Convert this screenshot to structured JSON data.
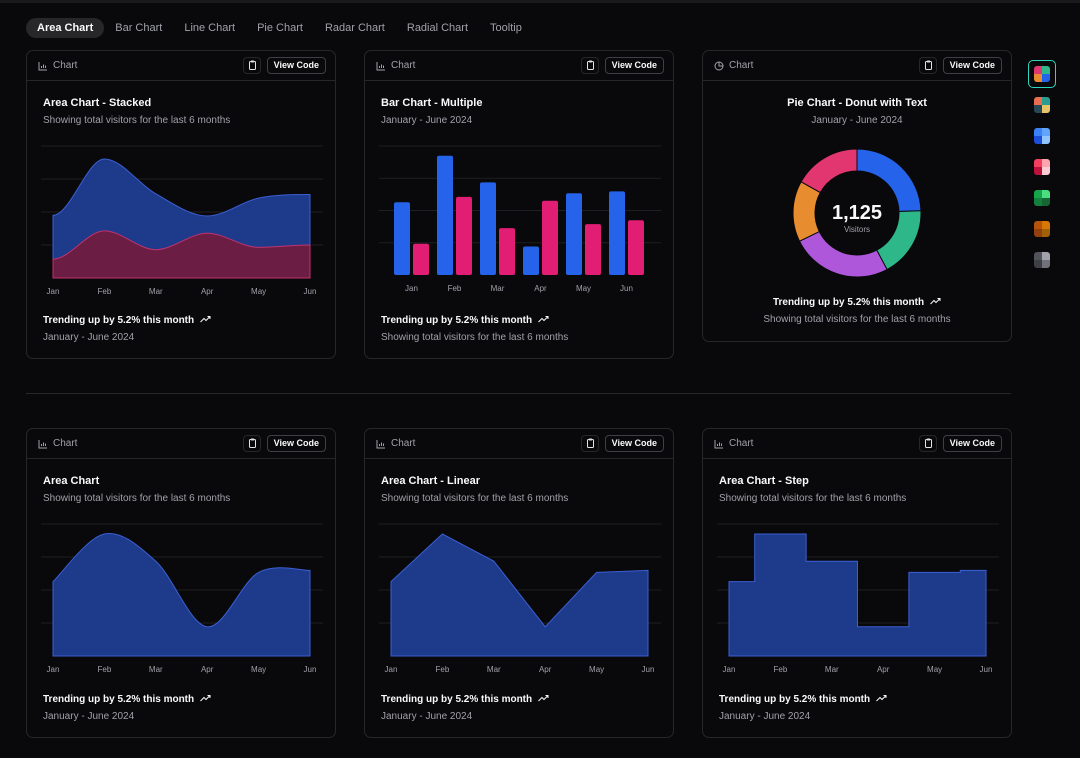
{
  "tabs": [
    "Area Chart",
    "Bar Chart",
    "Line Chart",
    "Pie Chart",
    "Radar Chart",
    "Radial Chart",
    "Tooltip"
  ],
  "active_tab": "Area Chart",
  "card_header": {
    "label": "Chart",
    "view_code_label": "View Code"
  },
  "colors": {
    "blue": "#2563eb",
    "pink": "#e11d74",
    "area_fill": "#1e3a8a",
    "area_stroke": "#3b5fd4",
    "desktop_fill": "#1e3a8a",
    "mobile_fill": "#6b1d44",
    "donut": [
      "#2563eb",
      "#2eb88a",
      "#af57db",
      "#e88c30",
      "#e23670"
    ],
    "swatch_ring": "#2dd4bf"
  },
  "cards": {
    "stacked": {
      "title": "Area Chart - Stacked",
      "subtitle": "Showing total visitors for the last 6 months",
      "trend": "Trending up by 5.2% this month",
      "footer": "January - June 2024"
    },
    "bar_multiple": {
      "title": "Bar Chart - Multiple",
      "subtitle": "January - June 2024",
      "trend": "Trending up by 5.2% this month",
      "footer": "Showing total visitors for the last 6 months"
    },
    "donut": {
      "title": "Pie Chart - Donut with Text",
      "subtitle": "January - June 2024",
      "total": "1,125",
      "total_label": "Visitors",
      "trend": "Trending up by 5.2% this month",
      "footer": "Showing total visitors for the last 6 months"
    },
    "area": {
      "title": "Area Chart",
      "subtitle": "Showing total visitors for the last 6 months",
      "trend": "Trending up by 5.2% this month",
      "footer": "January - June 2024"
    },
    "linear": {
      "title": "Area Chart - Linear",
      "subtitle": "Showing total visitors for the last 6 months",
      "trend": "Trending up by 5.2% this month",
      "footer": "January - June 2024"
    },
    "step": {
      "title": "Area Chart - Step",
      "subtitle": "Showing total visitors for the last 6 months",
      "trend": "Trending up by 5.2% this month",
      "footer": "January - June 2024"
    }
  },
  "chart_data": [
    {
      "id": "stacked",
      "type": "area",
      "style": "monotone-stacked",
      "categories": [
        "Jan",
        "Feb",
        "Mar",
        "Apr",
        "May",
        "Jun"
      ],
      "series": [
        {
          "key": "mobile",
          "values": [
            80,
            200,
            120,
            190,
            130,
            140
          ]
        },
        {
          "key": "desktop",
          "values": [
            186,
            305,
            237,
            73,
            209,
            214
          ]
        }
      ],
      "ylim": [
        0,
        560
      ],
      "grid": "horizontal"
    },
    {
      "id": "bar_multiple",
      "type": "bar",
      "categories": [
        "Jan",
        "Feb",
        "Mar",
        "Apr",
        "May",
        "Jun"
      ],
      "series": [
        {
          "key": "desktop",
          "values": [
            186,
            305,
            237,
            73,
            209,
            214
          ]
        },
        {
          "key": "mobile",
          "values": [
            80,
            200,
            120,
            190,
            130,
            140
          ]
        }
      ],
      "ylim": [
        0,
        330
      ],
      "grid": "horizontal"
    },
    {
      "id": "donut",
      "type": "pie",
      "labels": [
        "chrome",
        "safari",
        "firefox",
        "edge",
        "other"
      ],
      "values": [
        275,
        200,
        287,
        173,
        190
      ],
      "total": 1125
    },
    {
      "id": "area",
      "type": "area",
      "style": "natural",
      "categories": [
        "Jan",
        "Feb",
        "Mar",
        "Apr",
        "May",
        "Jun"
      ],
      "values": [
        186,
        305,
        237,
        73,
        209,
        214
      ],
      "ylim": [
        0,
        330
      ],
      "grid": "horizontal"
    },
    {
      "id": "linear",
      "type": "area",
      "style": "linear",
      "categories": [
        "Jan",
        "Feb",
        "Mar",
        "Apr",
        "May",
        "Jun"
      ],
      "values": [
        186,
        305,
        237,
        73,
        209,
        214
      ],
      "ylim": [
        0,
        330
      ],
      "grid": "horizontal"
    },
    {
      "id": "step",
      "type": "area",
      "style": "step",
      "categories": [
        "Jan",
        "Feb",
        "Mar",
        "Apr",
        "May",
        "Jun"
      ],
      "values": [
        186,
        305,
        237,
        73,
        209,
        214
      ],
      "ylim": [
        0,
        330
      ],
      "grid": "horizontal"
    }
  ],
  "theme_swatches": [
    {
      "name": "default",
      "colors": [
        "#e23670",
        "#2eb88a",
        "#e88c30",
        "#2563eb"
      ],
      "active": true
    },
    {
      "name": "palette",
      "colors": [
        "#e76e50",
        "#2a9d90",
        "#274754",
        "#e8c468"
      ],
      "active": false
    },
    {
      "name": "blue",
      "colors": [
        "#3b82f6",
        "#60a5fa",
        "#1d4ed8",
        "#93c5fd"
      ],
      "active": false
    },
    {
      "name": "rose",
      "colors": [
        "#f43f5e",
        "#fda4af",
        "#be123c",
        "#fecdd3"
      ],
      "active": false
    },
    {
      "name": "green",
      "colors": [
        "#16a34a",
        "#4ade80",
        "#15803d",
        "#166534"
      ],
      "active": false
    },
    {
      "name": "orange",
      "colors": [
        "#b45309",
        "#d97706",
        "#92400e",
        "#a16207"
      ],
      "active": false
    },
    {
      "name": "neutral",
      "colors": [
        "#52525b",
        "#a1a1aa",
        "#3f3f46",
        "#71717a"
      ],
      "active": false
    }
  ]
}
